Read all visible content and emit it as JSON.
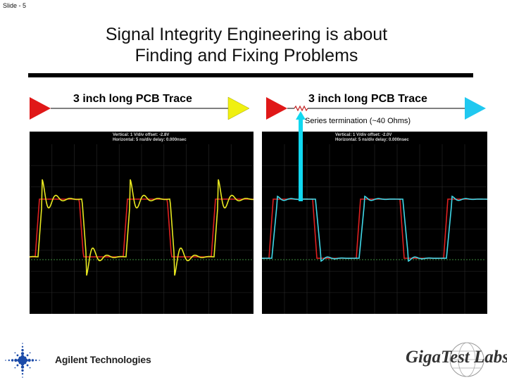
{
  "slide": {
    "number_label": "Slide - 5"
  },
  "title": {
    "line1": "Signal Integrity Engineering is about",
    "line2": "Finding and Fixing Problems"
  },
  "left_panel": {
    "trace_label": "3 inch long PCB Trace",
    "scope": {
      "vertical": "Vertical: 1 V/div  offset: -2.8V",
      "horizontal": "Horizontal: 5 ns/div  delay: 0.000nsec"
    },
    "colors": {
      "input": "#e02020",
      "output": "#e8e820"
    }
  },
  "right_panel": {
    "trace_label": "3 inch long PCB Trace",
    "termination_label": "Series termination (~40 Ohms)",
    "scope": {
      "vertical": "Vertical: 1 V/div  offset: -2.0V",
      "horizontal": "Horizontal: 5 ns/div  delay: 0.000nsec"
    },
    "colors": {
      "input": "#e02020",
      "output": "#40d8e8"
    }
  },
  "footer": {
    "agilent": "Agilent Technologies",
    "gigatest": "GigaTest Labs"
  },
  "colors": {
    "arrow": "#10d8f0",
    "grid": "#2a2a2a",
    "baseline": "#3c8c3c"
  }
}
